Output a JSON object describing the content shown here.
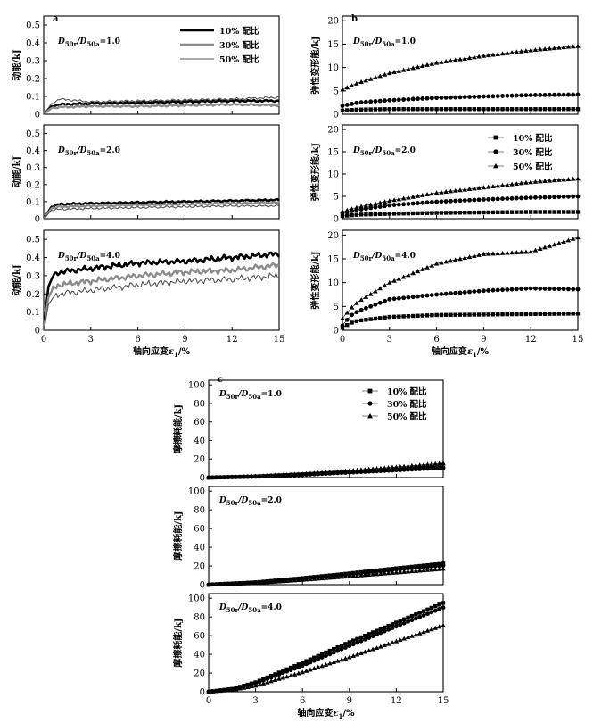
{
  "figure": {
    "panels": [
      {
        "letter": "a",
        "ylabel": "动能/kJ"
      },
      {
        "letter": "b",
        "ylabel": "弹性变形能/kJ"
      },
      {
        "letter": "c",
        "ylabel": "摩擦耗能/kJ"
      }
    ],
    "xlabel_prefix": "轴向应变",
    "xlabel_symbol": "ε",
    "xlabel_sub": "1",
    "xlabel_suffix": "/%",
    "ratio_prefix": "D",
    "ratio_sub_r": "50r",
    "ratio_sub_a": "50a",
    "ratio_values": [
      "1.0",
      "2.0",
      "4.0"
    ],
    "legend_entries": [
      "10% 配比",
      "30% 配比",
      "50% 配比"
    ],
    "colors": {
      "s10": "#000000",
      "s30": "#8c8c8c",
      "s50": "#555555"
    }
  },
  "chart_data": [
    {
      "type": "line",
      "panel": "a",
      "ylabel": "动能/kJ",
      "xlabel": "轴向应变ε1/%",
      "xlim": [
        0,
        15
      ],
      "xticks": [
        0,
        3,
        6,
        9,
        12,
        15
      ],
      "ylim": [
        0,
        0.55
      ],
      "yticks": [
        0,
        0.1,
        0.2,
        0.3,
        0.4,
        0.5
      ],
      "legend": "top-right",
      "subplots": [
        {
          "ratio": "1.0",
          "series": [
            {
              "name": "10% 配比",
              "x": [
                0,
                0.5,
                1,
                3,
                6,
                9,
                12,
                15
              ],
              "y": [
                0,
                0.045,
                0.055,
                0.06,
                0.065,
                0.07,
                0.075,
                0.075
              ]
            },
            {
              "name": "30% 配比",
              "x": [
                0,
                0.5,
                1,
                3,
                6,
                9,
                12,
                15
              ],
              "y": [
                0,
                0.035,
                0.04,
                0.045,
                0.045,
                0.05,
                0.055,
                0.05
              ]
            },
            {
              "name": "50% 配比",
              "x": [
                0,
                0.5,
                1,
                3,
                6,
                9,
                12,
                15
              ],
              "y": [
                0,
                0.06,
                0.085,
                0.07,
                0.075,
                0.08,
                0.085,
                0.095
              ]
            }
          ]
        },
        {
          "ratio": "2.0",
          "series": [
            {
              "name": "10% 配比",
              "x": [
                0,
                0.5,
                1,
                3,
                6,
                9,
                12,
                15
              ],
              "y": [
                0,
                0.07,
                0.085,
                0.09,
                0.095,
                0.1,
                0.105,
                0.11
              ]
            },
            {
              "name": "30% 配比",
              "x": [
                0,
                0.5,
                1,
                3,
                6,
                9,
                12,
                15
              ],
              "y": [
                0,
                0.06,
                0.07,
                0.075,
                0.08,
                0.085,
                0.09,
                0.095
              ]
            },
            {
              "name": "50% 配比",
              "x": [
                0,
                0.5,
                1,
                3,
                6,
                9,
                12,
                15
              ],
              "y": [
                0,
                0.05,
                0.055,
                0.06,
                0.065,
                0.07,
                0.075,
                0.075
              ]
            }
          ]
        },
        {
          "ratio": "4.0",
          "series": [
            {
              "name": "10% 配比",
              "x": [
                0,
                0.3,
                0.6,
                1,
                3,
                6,
                9,
                12,
                15
              ],
              "y": [
                0,
                0.24,
                0.3,
                0.32,
                0.34,
                0.37,
                0.38,
                0.4,
                0.42
              ]
            },
            {
              "name": "30% 配比",
              "x": [
                0,
                0.3,
                0.6,
                1,
                3,
                6,
                9,
                12,
                15
              ],
              "y": [
                0,
                0.18,
                0.23,
                0.25,
                0.27,
                0.3,
                0.32,
                0.33,
                0.36
              ]
            },
            {
              "name": "50% 配比",
              "x": [
                0,
                0.3,
                0.6,
                1,
                3,
                6,
                9,
                12,
                15
              ],
              "y": [
                0,
                0.14,
                0.18,
                0.2,
                0.22,
                0.25,
                0.27,
                0.28,
                0.3
              ]
            }
          ]
        }
      ]
    },
    {
      "type": "scatter",
      "panel": "b",
      "ylabel": "弹性变形能/kJ",
      "xlabel": "轴向应变ε1/%",
      "xlim": [
        0,
        15
      ],
      "xticks": [
        0,
        3,
        6,
        9,
        12,
        15
      ],
      "ylim": [
        0,
        21
      ],
      "yticks": [
        0,
        5,
        10,
        15,
        20
      ],
      "legend": "right",
      "subplots": [
        {
          "ratio": "1.0",
          "series": [
            {
              "name": "10% 配比",
              "marker": "square",
              "x": [
                0,
                1,
                3,
                6,
                9,
                12,
                15
              ],
              "y": [
                0.8,
                1.0,
                1.1,
                1.1,
                1.1,
                1.1,
                1.1
              ]
            },
            {
              "name": "30% 配比",
              "marker": "circle",
              "x": [
                0,
                1,
                3,
                6,
                9,
                12,
                15
              ],
              "y": [
                1.8,
                2.5,
                3.0,
                3.5,
                3.8,
                4.1,
                4.2
              ]
            },
            {
              "name": "50% 配比",
              "marker": "triangle",
              "x": [
                0,
                1,
                3,
                6,
                9,
                12,
                15
              ],
              "y": [
                5.3,
                6.7,
                8.8,
                11.0,
                12.5,
                13.7,
                14.6
              ]
            }
          ]
        },
        {
          "ratio": "2.0",
          "series": [
            {
              "name": "10% 配比",
              "marker": "square",
              "x": [
                0,
                1,
                3,
                6,
                9,
                12,
                15
              ],
              "y": [
                0.6,
                0.9,
                1.1,
                1.3,
                1.4,
                1.5,
                1.5
              ]
            },
            {
              "name": "30% 配比",
              "marker": "circle",
              "x": [
                0,
                1,
                3,
                6,
                9,
                12,
                15
              ],
              "y": [
                1.3,
                2.0,
                3.0,
                3.8,
                4.3,
                4.7,
                5.0
              ]
            },
            {
              "name": "50% 配比",
              "marker": "triangle",
              "x": [
                0,
                1,
                3,
                6,
                9,
                12,
                15
              ],
              "y": [
                1.6,
                2.6,
                4.0,
                5.8,
                7.0,
                8.2,
                9.0
              ]
            }
          ]
        },
        {
          "ratio": "4.0",
          "series": [
            {
              "name": "10% 配比",
              "marker": "square",
              "x": [
                0,
                0.5,
                1,
                3,
                6,
                9,
                12,
                15
              ],
              "y": [
                0.5,
                1.5,
                2.0,
                2.8,
                3.2,
                3.3,
                3.4,
                3.5
              ]
            },
            {
              "name": "30% 配比",
              "marker": "circle",
              "x": [
                0,
                0.5,
                1,
                3,
                6,
                9,
                12,
                15
              ],
              "y": [
                1.0,
                3.0,
                4.0,
                6.5,
                7.5,
                8.3,
                8.8,
                8.6
              ]
            },
            {
              "name": "50% 配比",
              "marker": "triangle",
              "x": [
                0,
                0.5,
                1,
                3,
                6,
                9,
                12,
                15
              ],
              "y": [
                2.5,
                4.5,
                6.0,
                10.0,
                14.0,
                16.0,
                16.5,
                19.5
              ]
            }
          ]
        }
      ]
    },
    {
      "type": "scatter",
      "panel": "c",
      "ylabel": "摩擦耗能/kJ",
      "xlabel": "轴向应变ε1/%",
      "xlim": [
        0,
        15
      ],
      "xticks": [
        0,
        3,
        6,
        9,
        12,
        15
      ],
      "ylim": [
        0,
        105
      ],
      "yticks": [
        0,
        20,
        40,
        60,
        80,
        100
      ],
      "legend": "top-right",
      "subplots": [
        {
          "ratio": "1.0",
          "series": [
            {
              "name": "10% 配比",
              "marker": "square",
              "x": [
                0,
                3,
                6,
                9,
                12,
                15
              ],
              "y": [
                0,
                1.2,
                3.5,
                6.0,
                8.5,
                11.0
              ]
            },
            {
              "name": "30% 配比",
              "marker": "circle",
              "x": [
                0,
                3,
                6,
                9,
                12,
                15
              ],
              "y": [
                0,
                1.0,
                3.0,
                5.5,
                8.0,
                10.5
              ]
            },
            {
              "name": "50% 配比",
              "marker": "triangle",
              "x": [
                0,
                3,
                6,
                9,
                12,
                15
              ],
              "y": [
                0,
                1.5,
                4.0,
                7.5,
                11.5,
                15.5
              ]
            }
          ]
        },
        {
          "ratio": "2.0",
          "series": [
            {
              "name": "10% 配比",
              "marker": "square",
              "x": [
                0,
                3,
                6,
                9,
                12,
                15
              ],
              "y": [
                0,
                2.5,
                7.0,
                12.0,
                17.5,
                22.5
              ]
            },
            {
              "name": "30% 配比",
              "marker": "circle",
              "x": [
                0,
                3,
                6,
                9,
                12,
                15
              ],
              "y": [
                0,
                2.2,
                6.2,
                11.0,
                16.0,
                20.5
              ]
            },
            {
              "name": "50% 配比",
              "marker": "triangle",
              "x": [
                0,
                3,
                6,
                9,
                12,
                15
              ],
              "y": [
                0,
                1.8,
                5.2,
                9.0,
                13.0,
                17.0
              ]
            }
          ]
        },
        {
          "ratio": "4.0",
          "series": [
            {
              "name": "10% 配比",
              "marker": "square",
              "x": [
                0,
                1.5,
                3,
                6,
                9,
                12,
                15
              ],
              "y": [
                0,
                3.0,
                10.0,
                31.0,
                53.0,
                74.0,
                95.0
              ]
            },
            {
              "name": "30% 配比",
              "marker": "circle",
              "x": [
                0,
                1.5,
                3,
                6,
                9,
                12,
                15
              ],
              "y": [
                0,
                2.8,
                9.0,
                28.0,
                49.0,
                70.0,
                90.0
              ]
            },
            {
              "name": "50% 配比",
              "marker": "triangle",
              "x": [
                0,
                1.5,
                3,
                6,
                9,
                12,
                15
              ],
              "y": [
                0,
                2.0,
                6.5,
                21.0,
                37.0,
                54.0,
                71.0
              ]
            }
          ]
        }
      ]
    }
  ]
}
